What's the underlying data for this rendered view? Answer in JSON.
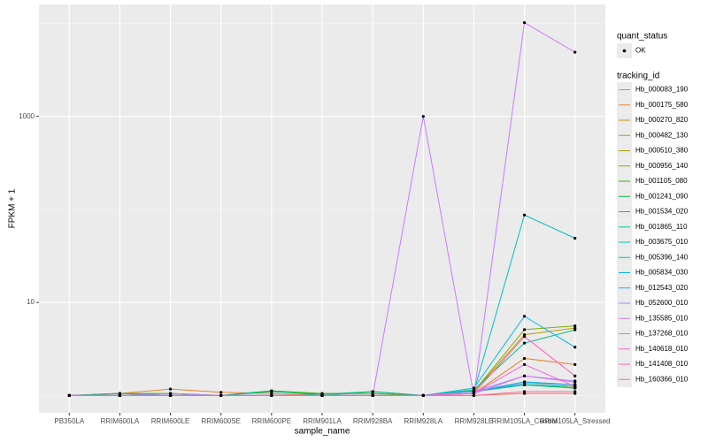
{
  "chart_data": {
    "type": "line",
    "xlabel": "sample_name",
    "ylabel": "FPKM + 1",
    "categories": [
      "PB350LA",
      "RRIM600LA",
      "RRIM600LE",
      "RRIM600SE",
      "RRIM600PE",
      "RRIM901LA",
      "RRIM928BA",
      "RRIM928LA",
      "RRIM928LE",
      "RRIM105LA_Control",
      "RRIM105LA_Stressed"
    ],
    "yscale": "log",
    "ylim": [
      0.65,
      16000
    ],
    "yticks": [
      10,
      1000
    ],
    "y_minor_ticks": [
      1,
      100,
      10000
    ],
    "grid": true,
    "point_legend": {
      "title": "quant_status",
      "label": "OK",
      "color": "#000000"
    },
    "legend_title": "tracking_id",
    "legend_position": "right",
    "series": [
      {
        "name": "Hb_000083_190",
        "color": "#F8766D",
        "values": [
          1,
          1,
          1,
          1,
          1,
          1,
          1,
          1,
          1,
          1.05,
          1.05
        ]
      },
      {
        "name": "Hb_000175_580",
        "color": "#EA8331",
        "values": [
          1,
          1.05,
          1.17,
          1.08,
          1.05,
          1,
          1,
          1,
          1.05,
          2.5,
          2.15
        ]
      },
      {
        "name": "Hb_000270_820",
        "color": "#D89000",
        "values": [
          1,
          1,
          1.05,
          1,
          1,
          1,
          1,
          1,
          1.1,
          1.4,
          1.3
        ]
      },
      {
        "name": "Hb_000482_130",
        "color": "#C09B00",
        "values": [
          1,
          1,
          1,
          1,
          1,
          1,
          1,
          1,
          1.1,
          4.5,
          5.3
        ]
      },
      {
        "name": "Hb_000510_380",
        "color": "#A3A500",
        "values": [
          1,
          1,
          1,
          1,
          1,
          1,
          1,
          1,
          1.1,
          1.3,
          1.2
        ]
      },
      {
        "name": "Hb_000956_140",
        "color": "#7CAE00",
        "values": [
          1,
          1,
          1,
          1,
          1,
          1,
          1,
          1,
          1.1,
          5.1,
          5.6
        ]
      },
      {
        "name": "Hb_001105_080",
        "color": "#39B600",
        "values": [
          1,
          1.05,
          1.05,
          1,
          1.12,
          1.05,
          1.05,
          1,
          1.1,
          1.3,
          1.25
        ]
      },
      {
        "name": "Hb_001241_090",
        "color": "#00BB4E",
        "values": [
          1,
          1,
          1,
          1,
          1.1,
          1.03,
          1.1,
          1,
          1.12,
          1.3,
          1.2
        ]
      },
      {
        "name": "Hb_001534_020",
        "color": "#00BF7D",
        "values": [
          1,
          1.05,
          1,
          1,
          1.12,
          1,
          1.1,
          1,
          1.15,
          3.65,
          5.07
        ]
      },
      {
        "name": "Hb_001865_110",
        "color": "#00C1A3",
        "values": [
          1,
          1,
          1,
          1,
          1,
          1,
          1,
          1,
          1.1,
          1.3,
          1.2
        ]
      },
      {
        "name": "Hb_003675_010",
        "color": "#00BFC4",
        "values": [
          1,
          1,
          1,
          1,
          1,
          1,
          1,
          1,
          1.1,
          87,
          49
        ]
      },
      {
        "name": "Hb_005396_140",
        "color": "#00BAE0",
        "values": [
          1,
          1,
          1,
          1,
          1,
          1,
          1,
          1,
          1.2,
          7.1,
          3.3
        ]
      },
      {
        "name": "Hb_005834_030",
        "color": "#00B0F6",
        "values": [
          1,
          1,
          1,
          1,
          1,
          1,
          1,
          1,
          1.1,
          1.4,
          1.3
        ]
      },
      {
        "name": "Hb_012543_020",
        "color": "#35A2FF",
        "values": [
          1,
          1,
          1,
          1,
          1,
          1,
          1,
          1,
          1.1,
          1.35,
          1.3
        ]
      },
      {
        "name": "Hb_052600_010",
        "color": "#9590FF",
        "values": [
          1,
          1,
          1.05,
          1,
          1,
          1,
          1,
          1,
          1.1,
          1.62,
          1.43
        ]
      },
      {
        "name": "Hb_135585_010",
        "color": "#C77CFF",
        "values": [
          1,
          1,
          1,
          1,
          1,
          1,
          1,
          1000,
          1,
          10200,
          4900
        ]
      },
      {
        "name": "Hb_137268_010",
        "color": "#E76BF3",
        "values": [
          1,
          1,
          1,
          1,
          1,
          1,
          1,
          1,
          1.05,
          1.62,
          1.39
        ]
      },
      {
        "name": "Hb_140618_010",
        "color": "#FA62DB",
        "values": [
          1,
          1,
          1,
          1,
          1,
          1,
          1,
          1,
          1.05,
          2.15,
          1.25
        ]
      },
      {
        "name": "Hb_141408_010",
        "color": "#FF62BC",
        "values": [
          1,
          1,
          1,
          1,
          1,
          1,
          1,
          1,
          1.05,
          4.3,
          1.62
        ]
      },
      {
        "name": "Hb_160366_010",
        "color": "#FF6A98",
        "values": [
          1,
          1,
          1,
          1,
          1,
          1,
          1,
          1,
          1,
          1.1,
          1.1
        ]
      }
    ]
  }
}
